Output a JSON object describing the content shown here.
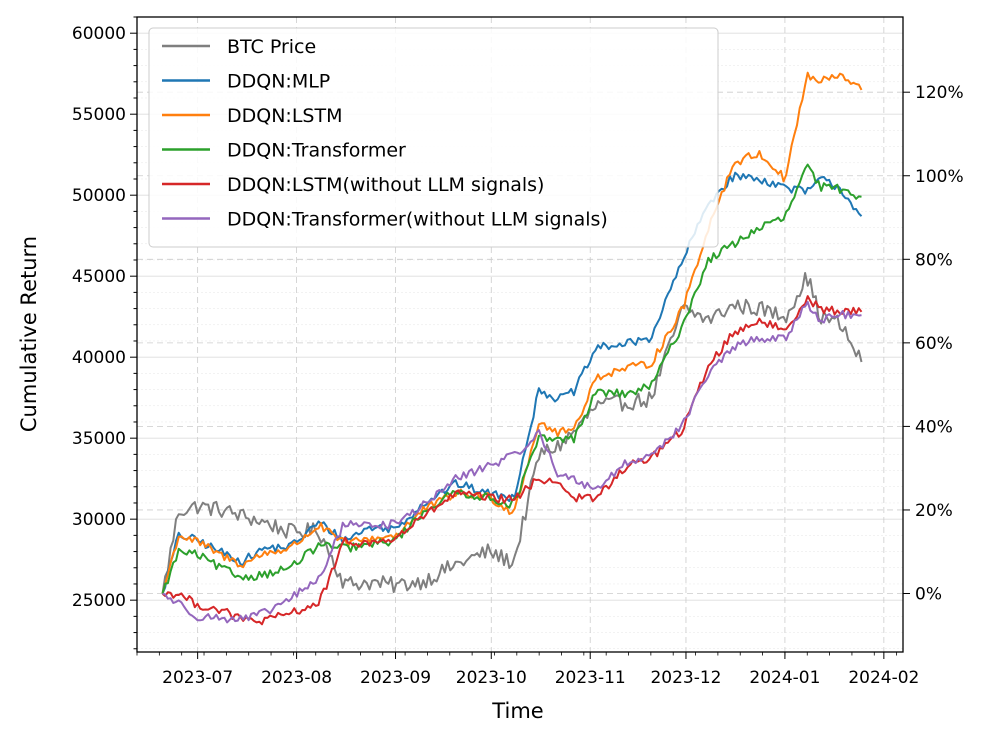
{
  "chart_data": {
    "type": "line",
    "title": "",
    "xlabel": "Time",
    "ylabel": "Cumulative Return",
    "x_ticks": [
      "2023-07",
      "2023-08",
      "2023-09",
      "2023-10",
      "2023-11",
      "2023-12",
      "2024-01",
      "2024-02"
    ],
    "x_range": [
      "2023-06-12",
      "2024-02-07"
    ],
    "ylim_left": [
      21800,
      61000
    ],
    "y_ticks_left": [
      25000,
      30000,
      35000,
      40000,
      45000,
      50000,
      55000,
      60000
    ],
    "y_tick_labels_left": [
      "25000",
      "30000",
      "35000",
      "40000",
      "45000",
      "50000",
      "55000",
      "60000"
    ],
    "ylim_right_pct": [
      -14,
      138
    ],
    "y_ticks_right": [
      0,
      20,
      40,
      60,
      80,
      100,
      120
    ],
    "y_tick_labels_right": [
      "0%",
      "20%",
      "40%",
      "60%",
      "80%",
      "100%",
      "120%"
    ],
    "grid": true,
    "legend_position": "top-left",
    "x": [
      "2023-06-20",
      "2023-06-25",
      "2023-07-01",
      "2023-07-08",
      "2023-07-15",
      "2023-07-22",
      "2023-07-30",
      "2023-08-08",
      "2023-08-16",
      "2023-08-24",
      "2023-09-01",
      "2023-09-10",
      "2023-09-20",
      "2023-09-30",
      "2023-10-08",
      "2023-10-16",
      "2023-10-22",
      "2023-10-27",
      "2023-11-03",
      "2023-11-12",
      "2023-11-20",
      "2023-11-30",
      "2023-12-08",
      "2023-12-16",
      "2023-12-24",
      "2024-01-01",
      "2024-01-08",
      "2024-01-12",
      "2024-01-18",
      "2024-01-25"
    ],
    "series": [
      {
        "name": "BTC Price",
        "color": "#7f7f7f",
        "values": [
          25400,
          30500,
          30800,
          30600,
          30200,
          29800,
          29200,
          29300,
          26000,
          26100,
          25900,
          26200,
          27200,
          28000,
          27300,
          34000,
          34500,
          35400,
          37000,
          37200,
          37400,
          43000,
          42300,
          43200,
          43000,
          42500,
          45000,
          42500,
          42100,
          39700
        ]
      },
      {
        "name": "DDQN:MLP",
        "color": "#1f77b4",
        "values": [
          25400,
          29000,
          28700,
          28000,
          27400,
          28200,
          28300,
          29800,
          28700,
          29500,
          29400,
          31000,
          32200,
          31600,
          31300,
          38000,
          37400,
          37900,
          40600,
          40800,
          41200,
          46000,
          49500,
          51200,
          51000,
          50500,
          50200,
          51000,
          50500,
          48700
        ]
      },
      {
        "name": "DDQN:LSTM",
        "color": "#ff7f0e",
        "values": [
          25400,
          29000,
          28600,
          27800,
          27200,
          27900,
          28200,
          29600,
          28500,
          28800,
          29000,
          30600,
          31600,
          31400,
          30400,
          36000,
          35300,
          35600,
          38800,
          39300,
          39600,
          43000,
          48000,
          52000,
          52600,
          51000,
          57400,
          57000,
          57400,
          56500
        ]
      },
      {
        "name": "DDQN:Transformer",
        "color": "#2ca02c",
        "values": [
          25400,
          28000,
          27800,
          27000,
          26400,
          26600,
          27000,
          28400,
          28200,
          28400,
          28700,
          30500,
          31700,
          31300,
          30900,
          35000,
          34900,
          35000,
          37900,
          37700,
          38200,
          42000,
          46000,
          47000,
          48000,
          48600,
          51800,
          50500,
          50400,
          49900
        ]
      },
      {
        "name": "DDQN:LSTM(without LLM signals)",
        "color": "#d62728",
        "values": [
          25400,
          25400,
          24700,
          24400,
          23800,
          23700,
          24200,
          24800,
          28600,
          28500,
          28800,
          30200,
          31600,
          31300,
          31200,
          32500,
          32300,
          31300,
          31300,
          33200,
          33800,
          35500,
          39500,
          41500,
          42300,
          41600,
          43700,
          43000,
          42800,
          42800
        ]
      },
      {
        "name": "DDQN:Transformer(without LLM signals)",
        "color": "#9467bd",
        "values": [
          25400,
          24800,
          24000,
          23900,
          23800,
          24200,
          25100,
          26300,
          29800,
          29600,
          29700,
          30900,
          32500,
          33300,
          33900,
          35300,
          32800,
          32400,
          31900,
          33400,
          34000,
          35800,
          39000,
          40600,
          41200,
          41100,
          43400,
          42300,
          42600,
          42600
        ]
      }
    ]
  }
}
